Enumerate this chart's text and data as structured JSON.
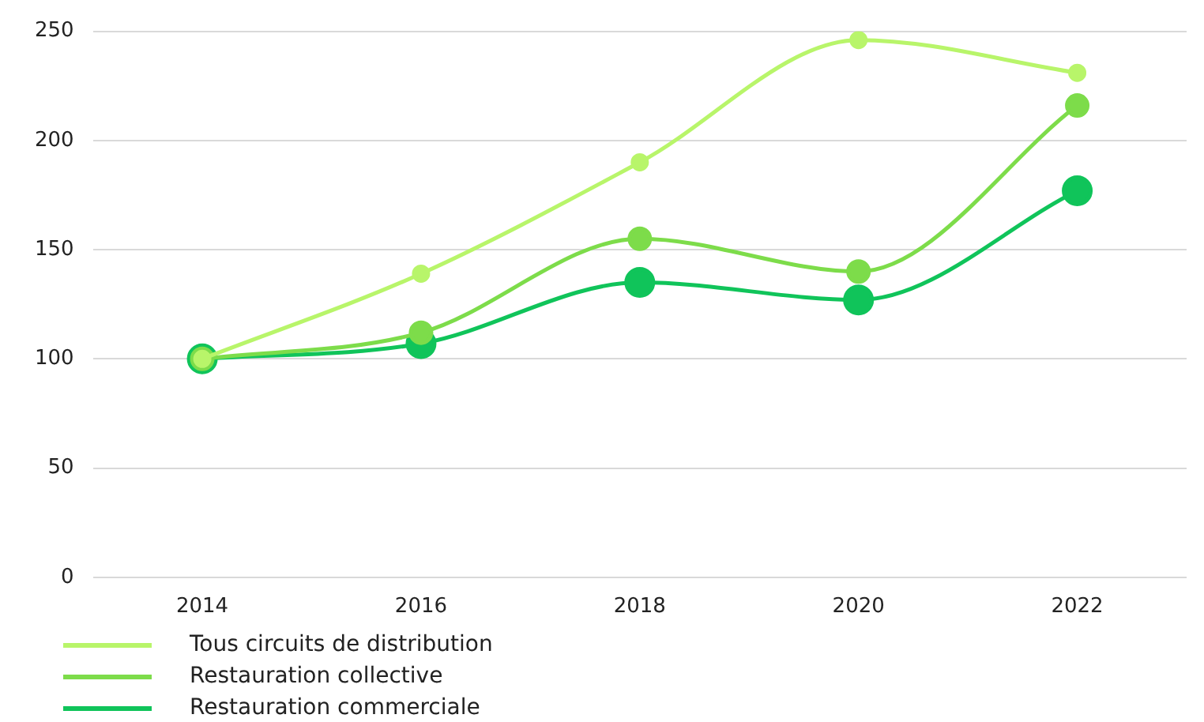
{
  "chart_data": {
    "type": "line",
    "categories": [
      "2014",
      "2016",
      "2018",
      "2020",
      "2022"
    ],
    "series": [
      {
        "name": "Tous circuits de distribution",
        "color": "#b8f56a",
        "values": [
          100,
          139,
          190,
          246,
          231
        ]
      },
      {
        "name": "Restauration collective",
        "color": "#7ddc4a",
        "values": [
          100,
          112,
          155,
          140,
          216
        ]
      },
      {
        "name": "Restauration commerciale",
        "color": "#10c45a",
        "values": [
          100,
          107,
          135,
          127,
          177
        ]
      }
    ],
    "ylim": [
      0,
      250
    ],
    "yticks": [
      0,
      50,
      100,
      150,
      200,
      250
    ],
    "grid": "y",
    "legend": "bottom left",
    "marker": "circle",
    "line_style": "solid"
  }
}
